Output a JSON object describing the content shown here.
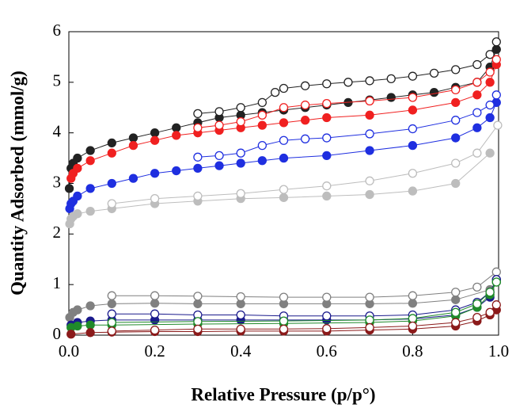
{
  "chart_data": {
    "type": "scatter",
    "x_label": "Relative Pressure (p/p°)",
    "y_label": "Quantity Adsorbed (mmol/g)",
    "xlim": [
      0,
      1
    ],
    "ylim": [
      0,
      6
    ],
    "xticks": [
      {
        "value": 0,
        "label": "0.0"
      },
      0.2,
      0.4,
      0.6,
      0.8,
      {
        "value": 1,
        "label": "1.0"
      }
    ],
    "yticks": [
      0,
      1,
      2,
      3,
      4,
      5,
      6
    ],
    "series": [
      {
        "color": "#222222",
        "filled": true,
        "x": [
          0.001,
          0.005,
          0.01,
          0.02,
          0.05,
          0.1,
          0.15,
          0.2,
          0.25,
          0.3,
          0.35,
          0.4,
          0.45,
          0.5,
          0.55,
          0.6,
          0.65,
          0.7,
          0.75,
          0.8,
          0.85,
          0.9,
          0.95,
          0.98,
          0.995
        ],
        "values": [
          2.9,
          3.3,
          3.4,
          3.5,
          3.65,
          3.8,
          3.9,
          4.0,
          4.1,
          4.2,
          4.3,
          4.35,
          4.4,
          4.45,
          4.5,
          4.55,
          4.6,
          4.65,
          4.7,
          4.75,
          4.8,
          4.9,
          5.0,
          5.3,
          5.65
        ]
      },
      {
        "color": "#222222",
        "filled": false,
        "x": [
          0.3,
          0.35,
          0.4,
          0.45,
          0.48,
          0.5,
          0.55,
          0.6,
          0.65,
          0.7,
          0.75,
          0.8,
          0.85,
          0.9,
          0.95,
          0.98,
          0.995
        ],
        "values": [
          4.38,
          4.42,
          4.5,
          4.6,
          4.8,
          4.88,
          4.93,
          4.97,
          5.0,
          5.03,
          5.07,
          5.12,
          5.18,
          5.25,
          5.35,
          5.55,
          5.8
        ]
      },
      {
        "color": "#f02020",
        "filled": true,
        "x": [
          0.005,
          0.01,
          0.02,
          0.05,
          0.1,
          0.15,
          0.2,
          0.25,
          0.3,
          0.35,
          0.4,
          0.45,
          0.5,
          0.55,
          0.6,
          0.7,
          0.8,
          0.9,
          0.95,
          0.98,
          0.995
        ],
        "values": [
          3.1,
          3.2,
          3.3,
          3.45,
          3.6,
          3.75,
          3.85,
          3.95,
          4.0,
          4.05,
          4.1,
          4.15,
          4.2,
          4.25,
          4.3,
          4.35,
          4.45,
          4.6,
          4.75,
          5.0,
          5.35
        ]
      },
      {
        "color": "#f02020",
        "filled": false,
        "x": [
          0.3,
          0.35,
          0.4,
          0.45,
          0.5,
          0.55,
          0.6,
          0.7,
          0.8,
          0.9,
          0.95,
          0.98,
          0.995
        ],
        "values": [
          4.1,
          4.15,
          4.22,
          4.35,
          4.5,
          4.55,
          4.58,
          4.63,
          4.7,
          4.85,
          5.0,
          5.2,
          5.45
        ]
      },
      {
        "color": "#1f2fe0",
        "filled": true,
        "x": [
          0.002,
          0.005,
          0.01,
          0.02,
          0.05,
          0.1,
          0.15,
          0.2,
          0.25,
          0.3,
          0.35,
          0.4,
          0.45,
          0.5,
          0.6,
          0.7,
          0.8,
          0.9,
          0.95,
          0.98,
          0.995
        ],
        "values": [
          2.5,
          2.6,
          2.65,
          2.75,
          2.9,
          3.0,
          3.1,
          3.2,
          3.25,
          3.3,
          3.35,
          3.4,
          3.45,
          3.5,
          3.55,
          3.65,
          3.75,
          3.9,
          4.1,
          4.3,
          4.6
        ]
      },
      {
        "color": "#1f2fe0",
        "filled": false,
        "x": [
          0.3,
          0.35,
          0.4,
          0.45,
          0.5,
          0.55,
          0.6,
          0.7,
          0.8,
          0.9,
          0.95,
          0.98,
          0.995
        ],
        "values": [
          3.52,
          3.55,
          3.6,
          3.75,
          3.85,
          3.88,
          3.9,
          3.98,
          4.08,
          4.25,
          4.4,
          4.55,
          4.75
        ]
      },
      {
        "color": "#bdbdbd",
        "filled": true,
        "x": [
          0.002,
          0.005,
          0.01,
          0.02,
          0.05,
          0.1,
          0.2,
          0.3,
          0.4,
          0.5,
          0.6,
          0.7,
          0.8,
          0.9,
          0.98
        ],
        "values": [
          2.2,
          2.3,
          2.35,
          2.4,
          2.45,
          2.5,
          2.6,
          2.65,
          2.7,
          2.72,
          2.75,
          2.78,
          2.85,
          3.0,
          3.6
        ]
      },
      {
        "color": "#bdbdbd",
        "filled": false,
        "x": [
          0.1,
          0.2,
          0.3,
          0.4,
          0.5,
          0.6,
          0.7,
          0.8,
          0.9,
          0.95,
          0.998
        ],
        "values": [
          2.6,
          2.7,
          2.75,
          2.8,
          2.88,
          2.95,
          3.05,
          3.2,
          3.4,
          3.6,
          4.15
        ]
      },
      {
        "color": "#808080",
        "filled": true,
        "x": [
          0.002,
          0.01,
          0.02,
          0.05,
          0.1,
          0.2,
          0.3,
          0.4,
          0.5,
          0.6,
          0.7,
          0.8,
          0.9,
          0.98,
          0.995
        ],
        "values": [
          0.35,
          0.45,
          0.5,
          0.58,
          0.62,
          0.63,
          0.62,
          0.62,
          0.62,
          0.62,
          0.62,
          0.63,
          0.7,
          0.9,
          1.05
        ]
      },
      {
        "color": "#808080",
        "filled": false,
        "x": [
          0.1,
          0.2,
          0.3,
          0.4,
          0.5,
          0.6,
          0.7,
          0.8,
          0.9,
          0.95,
          0.995
        ],
        "values": [
          0.78,
          0.78,
          0.77,
          0.76,
          0.75,
          0.75,
          0.75,
          0.78,
          0.85,
          0.95,
          1.25
        ]
      },
      {
        "color": "#1a1a8c",
        "filled": true,
        "x": [
          0.005,
          0.02,
          0.05,
          0.1,
          0.2,
          0.3,
          0.4,
          0.5,
          0.6,
          0.7,
          0.8,
          0.9,
          0.95,
          0.98,
          0.995
        ],
        "values": [
          0.2,
          0.25,
          0.28,
          0.3,
          0.3,
          0.3,
          0.3,
          0.3,
          0.3,
          0.3,
          0.32,
          0.4,
          0.55,
          0.75,
          1.1
        ]
      },
      {
        "color": "#1a1a8c",
        "filled": false,
        "x": [
          0.1,
          0.2,
          0.3,
          0.4,
          0.5,
          0.6,
          0.7,
          0.8,
          0.9,
          0.95,
          0.98,
          0.995
        ],
        "values": [
          0.42,
          0.42,
          0.4,
          0.4,
          0.38,
          0.38,
          0.38,
          0.4,
          0.5,
          0.65,
          0.85,
          1.1
        ]
      },
      {
        "color": "#1f8a2a",
        "filled": true,
        "x": [
          0.005,
          0.02,
          0.05,
          0.1,
          0.3,
          0.5,
          0.7,
          0.8,
          0.9,
          0.95,
          0.98,
          0.995
        ],
        "values": [
          0.15,
          0.18,
          0.2,
          0.2,
          0.22,
          0.23,
          0.25,
          0.28,
          0.38,
          0.55,
          0.8,
          1.05
        ]
      },
      {
        "color": "#1f8a2a",
        "filled": false,
        "x": [
          0.1,
          0.3,
          0.5,
          0.7,
          0.8,
          0.9,
          0.95,
          0.98,
          0.995
        ],
        "values": [
          0.25,
          0.27,
          0.28,
          0.3,
          0.33,
          0.45,
          0.62,
          0.85,
          1.05
        ]
      },
      {
        "color": "#8b1a1a",
        "filled": true,
        "x": [
          0.005,
          0.05,
          0.1,
          0.2,
          0.3,
          0.4,
          0.5,
          0.6,
          0.7,
          0.8,
          0.9,
          0.95,
          0.98,
          0.995
        ],
        "values": [
          0.02,
          0.05,
          0.06,
          0.07,
          0.07,
          0.08,
          0.08,
          0.08,
          0.1,
          0.12,
          0.18,
          0.28,
          0.4,
          0.5
        ]
      },
      {
        "color": "#8b1a1a",
        "filled": false,
        "x": [
          0.1,
          0.2,
          0.3,
          0.4,
          0.5,
          0.6,
          0.7,
          0.8,
          0.9,
          0.95,
          0.98,
          0.995
        ],
        "values": [
          0.08,
          0.1,
          0.12,
          0.12,
          0.12,
          0.13,
          0.15,
          0.18,
          0.25,
          0.35,
          0.45,
          0.6
        ]
      }
    ]
  }
}
